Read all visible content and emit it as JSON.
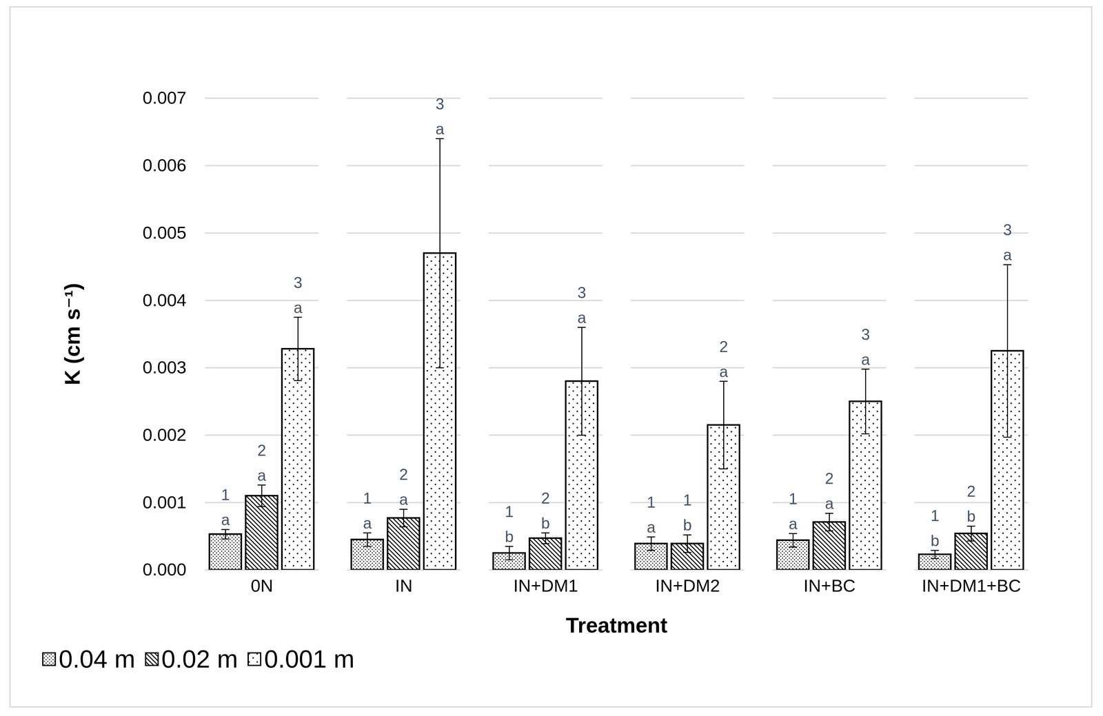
{
  "chart_data": {
    "type": "bar",
    "x_label": "Treatment",
    "y_label": "K (cm s⁻¹)",
    "categories": [
      "0N",
      "IN",
      "IN+DM1",
      "IN+DM2",
      "IN+BC",
      "IN+DM1+BC"
    ],
    "series": [
      {
        "name": "0.04 m",
        "color": "#000000",
        "values": [
          0.00053,
          0.00045,
          0.00025,
          0.00039,
          0.00044,
          0.00023
        ],
        "errors": [
          7e-05,
          0.0001,
          0.0001,
          0.0001,
          0.0001,
          6e-05
        ],
        "groups": [
          "1",
          "1",
          "1",
          "1",
          "1",
          "1"
        ],
        "letters": [
          "a",
          "a",
          "b",
          "a",
          "a",
          "b"
        ]
      },
      {
        "name": "0.02 m",
        "color": "#000000",
        "values": [
          0.0011,
          0.00077,
          0.00047,
          0.00039,
          0.00071,
          0.00054
        ],
        "errors": [
          0.00016,
          0.00013,
          8e-05,
          0.00013,
          0.00013,
          0.00011
        ],
        "groups": [
          "2",
          "2",
          "2",
          "1",
          "2",
          "2"
        ],
        "letters": [
          "a",
          "a",
          "b",
          "b",
          "a",
          "b"
        ]
      },
      {
        "name": "0.001 m",
        "color": "#000000",
        "values": [
          0.00328,
          0.0047,
          0.0028,
          0.00215,
          0.0025,
          0.00325
        ],
        "errors": [
          0.00047,
          0.0017,
          0.0008,
          0.00065,
          0.00048,
          0.00128
        ],
        "groups": [
          "3",
          "3",
          "3",
          "2",
          "3",
          "3"
        ],
        "letters": [
          "a",
          "a",
          "a",
          "a",
          "a",
          "a"
        ]
      }
    ],
    "ylim": [
      0,
      0.007
    ],
    "yticks": [
      {
        "value": 0,
        "label": "0.000"
      },
      {
        "value": 0.001,
        "label": "0.001"
      },
      {
        "value": 0.002,
        "label": "0.002"
      },
      {
        "value": 0.003,
        "label": "0.003"
      },
      {
        "value": 0.004,
        "label": "0.004"
      },
      {
        "value": 0.005,
        "label": "0.005"
      },
      {
        "value": 0.006,
        "label": "0.006"
      },
      {
        "value": 0.007,
        "label": "0.007"
      }
    ],
    "grid": true,
    "legend": "bottom-left"
  }
}
